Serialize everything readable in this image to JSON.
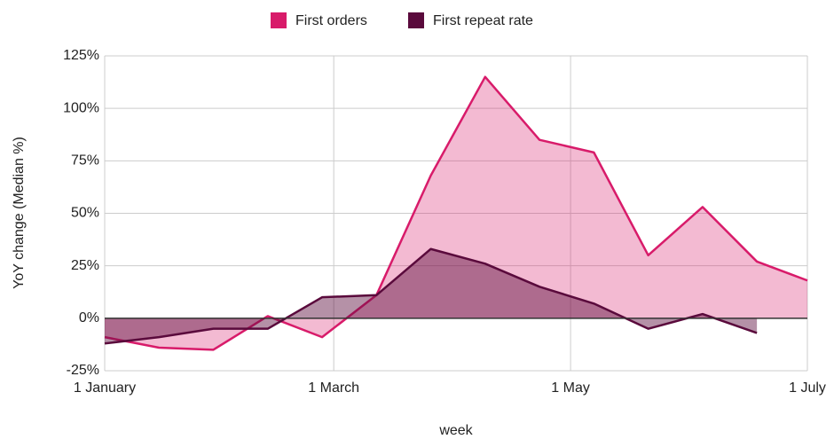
{
  "chart_data": {
    "type": "area",
    "x": [
      0,
      14,
      28,
      42,
      56,
      70,
      84,
      98,
      112,
      126,
      140,
      154,
      168,
      181
    ],
    "series": [
      {
        "name": "First orders",
        "color": "#d81b6a",
        "values": [
          -9,
          -14,
          -15,
          1,
          -9,
          11,
          68,
          115,
          85,
          79,
          30,
          53,
          27,
          18
        ]
      },
      {
        "name": "First repeat rate",
        "color": "#5a0a3c",
        "values": [
          -12,
          -9,
          -5,
          -5,
          10,
          11,
          33,
          26,
          15,
          7,
          -5,
          2,
          -7,
          null
        ]
      }
    ],
    "xlim": [
      0,
      181
    ],
    "xticks": [
      {
        "value": 0,
        "label": "1 January"
      },
      {
        "value": 59,
        "label": "1 March"
      },
      {
        "value": 120,
        "label": "1 May"
      },
      {
        "value": 181,
        "label": "1 July"
      }
    ],
    "ylim": [
      -25,
      125
    ],
    "yticks": [
      {
        "value": -25,
        "label": "-25%"
      },
      {
        "value": 0,
        "label": "0%"
      },
      {
        "value": 25,
        "label": "25%"
      },
      {
        "value": 50,
        "label": "50%"
      },
      {
        "value": 75,
        "label": "75%"
      },
      {
        "value": 100,
        "label": "100%"
      },
      {
        "value": 125,
        "label": "125%"
      }
    ],
    "xlabel": "week",
    "ylabel": "YoY change (Median %)",
    "grid": true
  }
}
